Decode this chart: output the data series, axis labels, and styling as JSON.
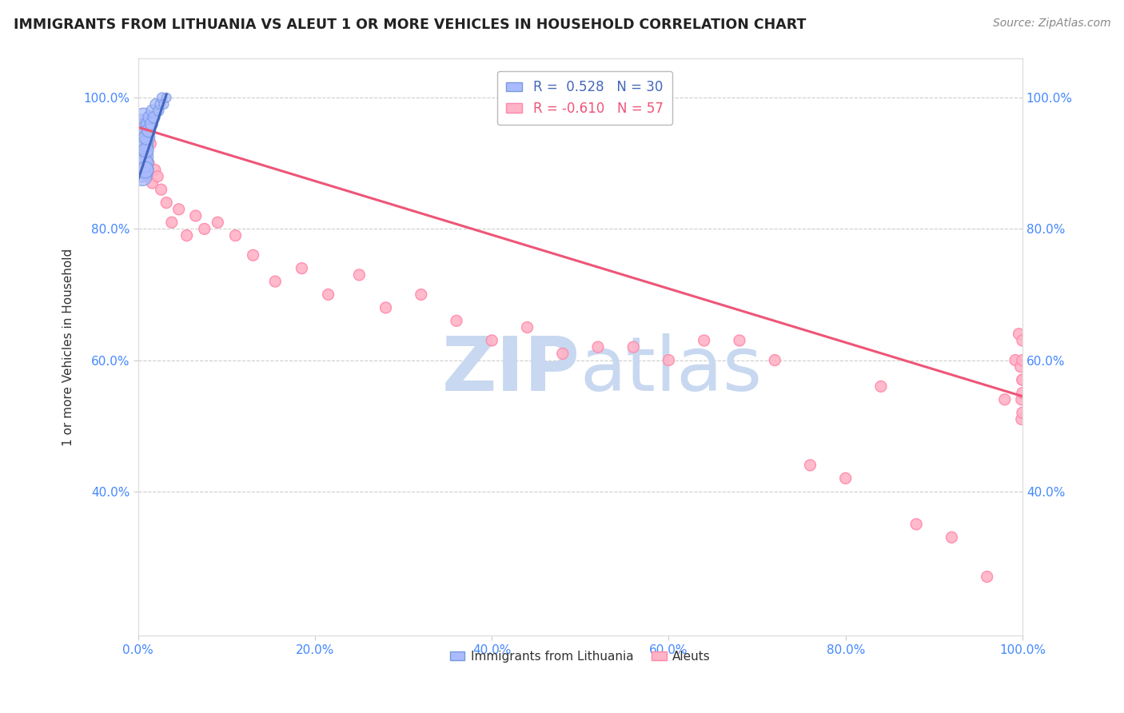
{
  "title": "IMMIGRANTS FROM LITHUANIA VS ALEUT 1 OR MORE VEHICLES IN HOUSEHOLD CORRELATION CHART",
  "source": "Source: ZipAtlas.com",
  "ylabel": "1 or more Vehicles in Household",
  "xlim": [
    0.0,
    1.0
  ],
  "ylim": [
    0.18,
    1.06
  ],
  "x_tick_labels": [
    "0.0%",
    "20.0%",
    "40.0%",
    "60.0%",
    "80.0%",
    "100.0%"
  ],
  "x_tick_vals": [
    0.0,
    0.2,
    0.4,
    0.6,
    0.8,
    1.0
  ],
  "y_tick_labels": [
    "40.0%",
    "60.0%",
    "80.0%",
    "100.0%"
  ],
  "y_tick_vals": [
    0.4,
    0.6,
    0.8,
    1.0
  ],
  "legend_blue_r": "R =  0.528",
  "legend_blue_n": "N = 30",
  "legend_pink_r": "R = -0.610",
  "legend_pink_n": "N = 57",
  "blue_color": "#AABBFF",
  "pink_color": "#FFB3C6",
  "blue_edge_color": "#7799DD",
  "pink_edge_color": "#FF88AA",
  "blue_line_color": "#4466BB",
  "pink_line_color": "#EE5577",
  "watermark_color": "#C8D8F0",
  "background_color": "#FFFFFF",
  "grid_color": "#CCCCCC",
  "blue_x": [
    0.001,
    0.002,
    0.002,
    0.003,
    0.003,
    0.003,
    0.004,
    0.004,
    0.005,
    0.005,
    0.006,
    0.006,
    0.007,
    0.007,
    0.008,
    0.008,
    0.009,
    0.01,
    0.011,
    0.012,
    0.013,
    0.015,
    0.016,
    0.018,
    0.02,
    0.023,
    0.025,
    0.027,
    0.029,
    0.032
  ],
  "blue_y": [
    0.91,
    0.93,
    0.96,
    0.89,
    0.92,
    0.95,
    0.9,
    0.94,
    0.88,
    0.93,
    0.91,
    0.97,
    0.9,
    0.95,
    0.89,
    0.93,
    0.92,
    0.94,
    0.96,
    0.95,
    0.97,
    0.96,
    0.98,
    0.97,
    0.99,
    0.98,
    0.99,
    1.0,
    0.99,
    1.0
  ],
  "blue_sizes": [
    350,
    400,
    300,
    500,
    450,
    380,
    320,
    420,
    280,
    350,
    310,
    280,
    260,
    240,
    220,
    200,
    180,
    200,
    160,
    150,
    140,
    130,
    120,
    110,
    100,
    90,
    85,
    80,
    75,
    70
  ],
  "pink_x": [
    0.004,
    0.005,
    0.006,
    0.007,
    0.008,
    0.009,
    0.01,
    0.011,
    0.012,
    0.014,
    0.016,
    0.019,
    0.022,
    0.026,
    0.032,
    0.038,
    0.046,
    0.055,
    0.065,
    0.075,
    0.09,
    0.11,
    0.13,
    0.155,
    0.185,
    0.215,
    0.25,
    0.28,
    0.32,
    0.36,
    0.4,
    0.44,
    0.48,
    0.52,
    0.56,
    0.6,
    0.64,
    0.68,
    0.72,
    0.76,
    0.8,
    0.84,
    0.88,
    0.92,
    0.96,
    0.98,
    0.992,
    0.996,
    0.998,
    0.999,
    0.999,
    1.0,
    1.0,
    1.0,
    1.0,
    1.0,
    1.0
  ],
  "pink_y": [
    0.96,
    0.92,
    0.95,
    0.89,
    0.93,
    0.91,
    0.94,
    0.88,
    0.9,
    0.93,
    0.87,
    0.89,
    0.88,
    0.86,
    0.84,
    0.81,
    0.83,
    0.79,
    0.82,
    0.8,
    0.81,
    0.79,
    0.76,
    0.72,
    0.74,
    0.7,
    0.73,
    0.68,
    0.7,
    0.66,
    0.63,
    0.65,
    0.61,
    0.62,
    0.62,
    0.6,
    0.63,
    0.63,
    0.6,
    0.44,
    0.42,
    0.56,
    0.35,
    0.33,
    0.27,
    0.54,
    0.6,
    0.64,
    0.59,
    0.54,
    0.51,
    0.52,
    0.63,
    0.6,
    0.57,
    0.55,
    0.57
  ],
  "pink_sizes": [
    100,
    100,
    100,
    100,
    100,
    100,
    100,
    100,
    100,
    100,
    100,
    100,
    100,
    100,
    100,
    100,
    100,
    100,
    100,
    100,
    100,
    100,
    100,
    100,
    100,
    100,
    100,
    100,
    100,
    100,
    100,
    100,
    100,
    100,
    100,
    100,
    100,
    100,
    100,
    100,
    100,
    100,
    100,
    100,
    100,
    100,
    100,
    100,
    100,
    100,
    100,
    100,
    100,
    100,
    100,
    100,
    100
  ],
  "pink_line_x0": 0.0,
  "pink_line_y0": 0.955,
  "pink_line_x1": 1.0,
  "pink_line_y1": 0.545,
  "blue_line_x0": 0.0,
  "blue_line_y0": 0.875,
  "blue_line_x1": 0.032,
  "blue_line_y1": 1.005
}
